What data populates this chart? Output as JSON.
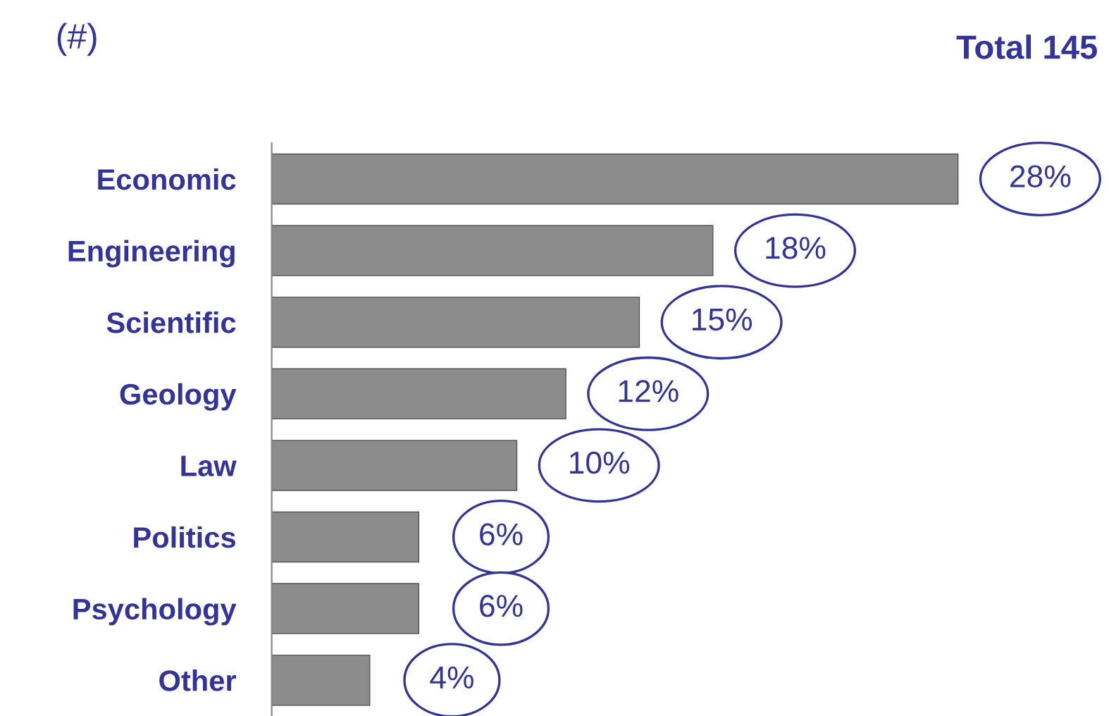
{
  "chart_data": {
    "type": "bar",
    "orientation": "horizontal",
    "title": "(#)",
    "annotations": [
      "Total 145"
    ],
    "categories": [
      "Economic",
      "Engineering",
      "Scientific",
      "Geology",
      "Law",
      "Politics",
      "Psychology",
      "Other"
    ],
    "values": [
      28,
      18,
      15,
      12,
      10,
      6,
      6,
      4
    ],
    "value_labels": [
      "28%",
      "18%",
      "15%",
      "12%",
      "10%",
      "6%",
      "6%",
      "4%"
    ],
    "color": "#8c8c8c",
    "grid": false,
    "legend": false
  }
}
